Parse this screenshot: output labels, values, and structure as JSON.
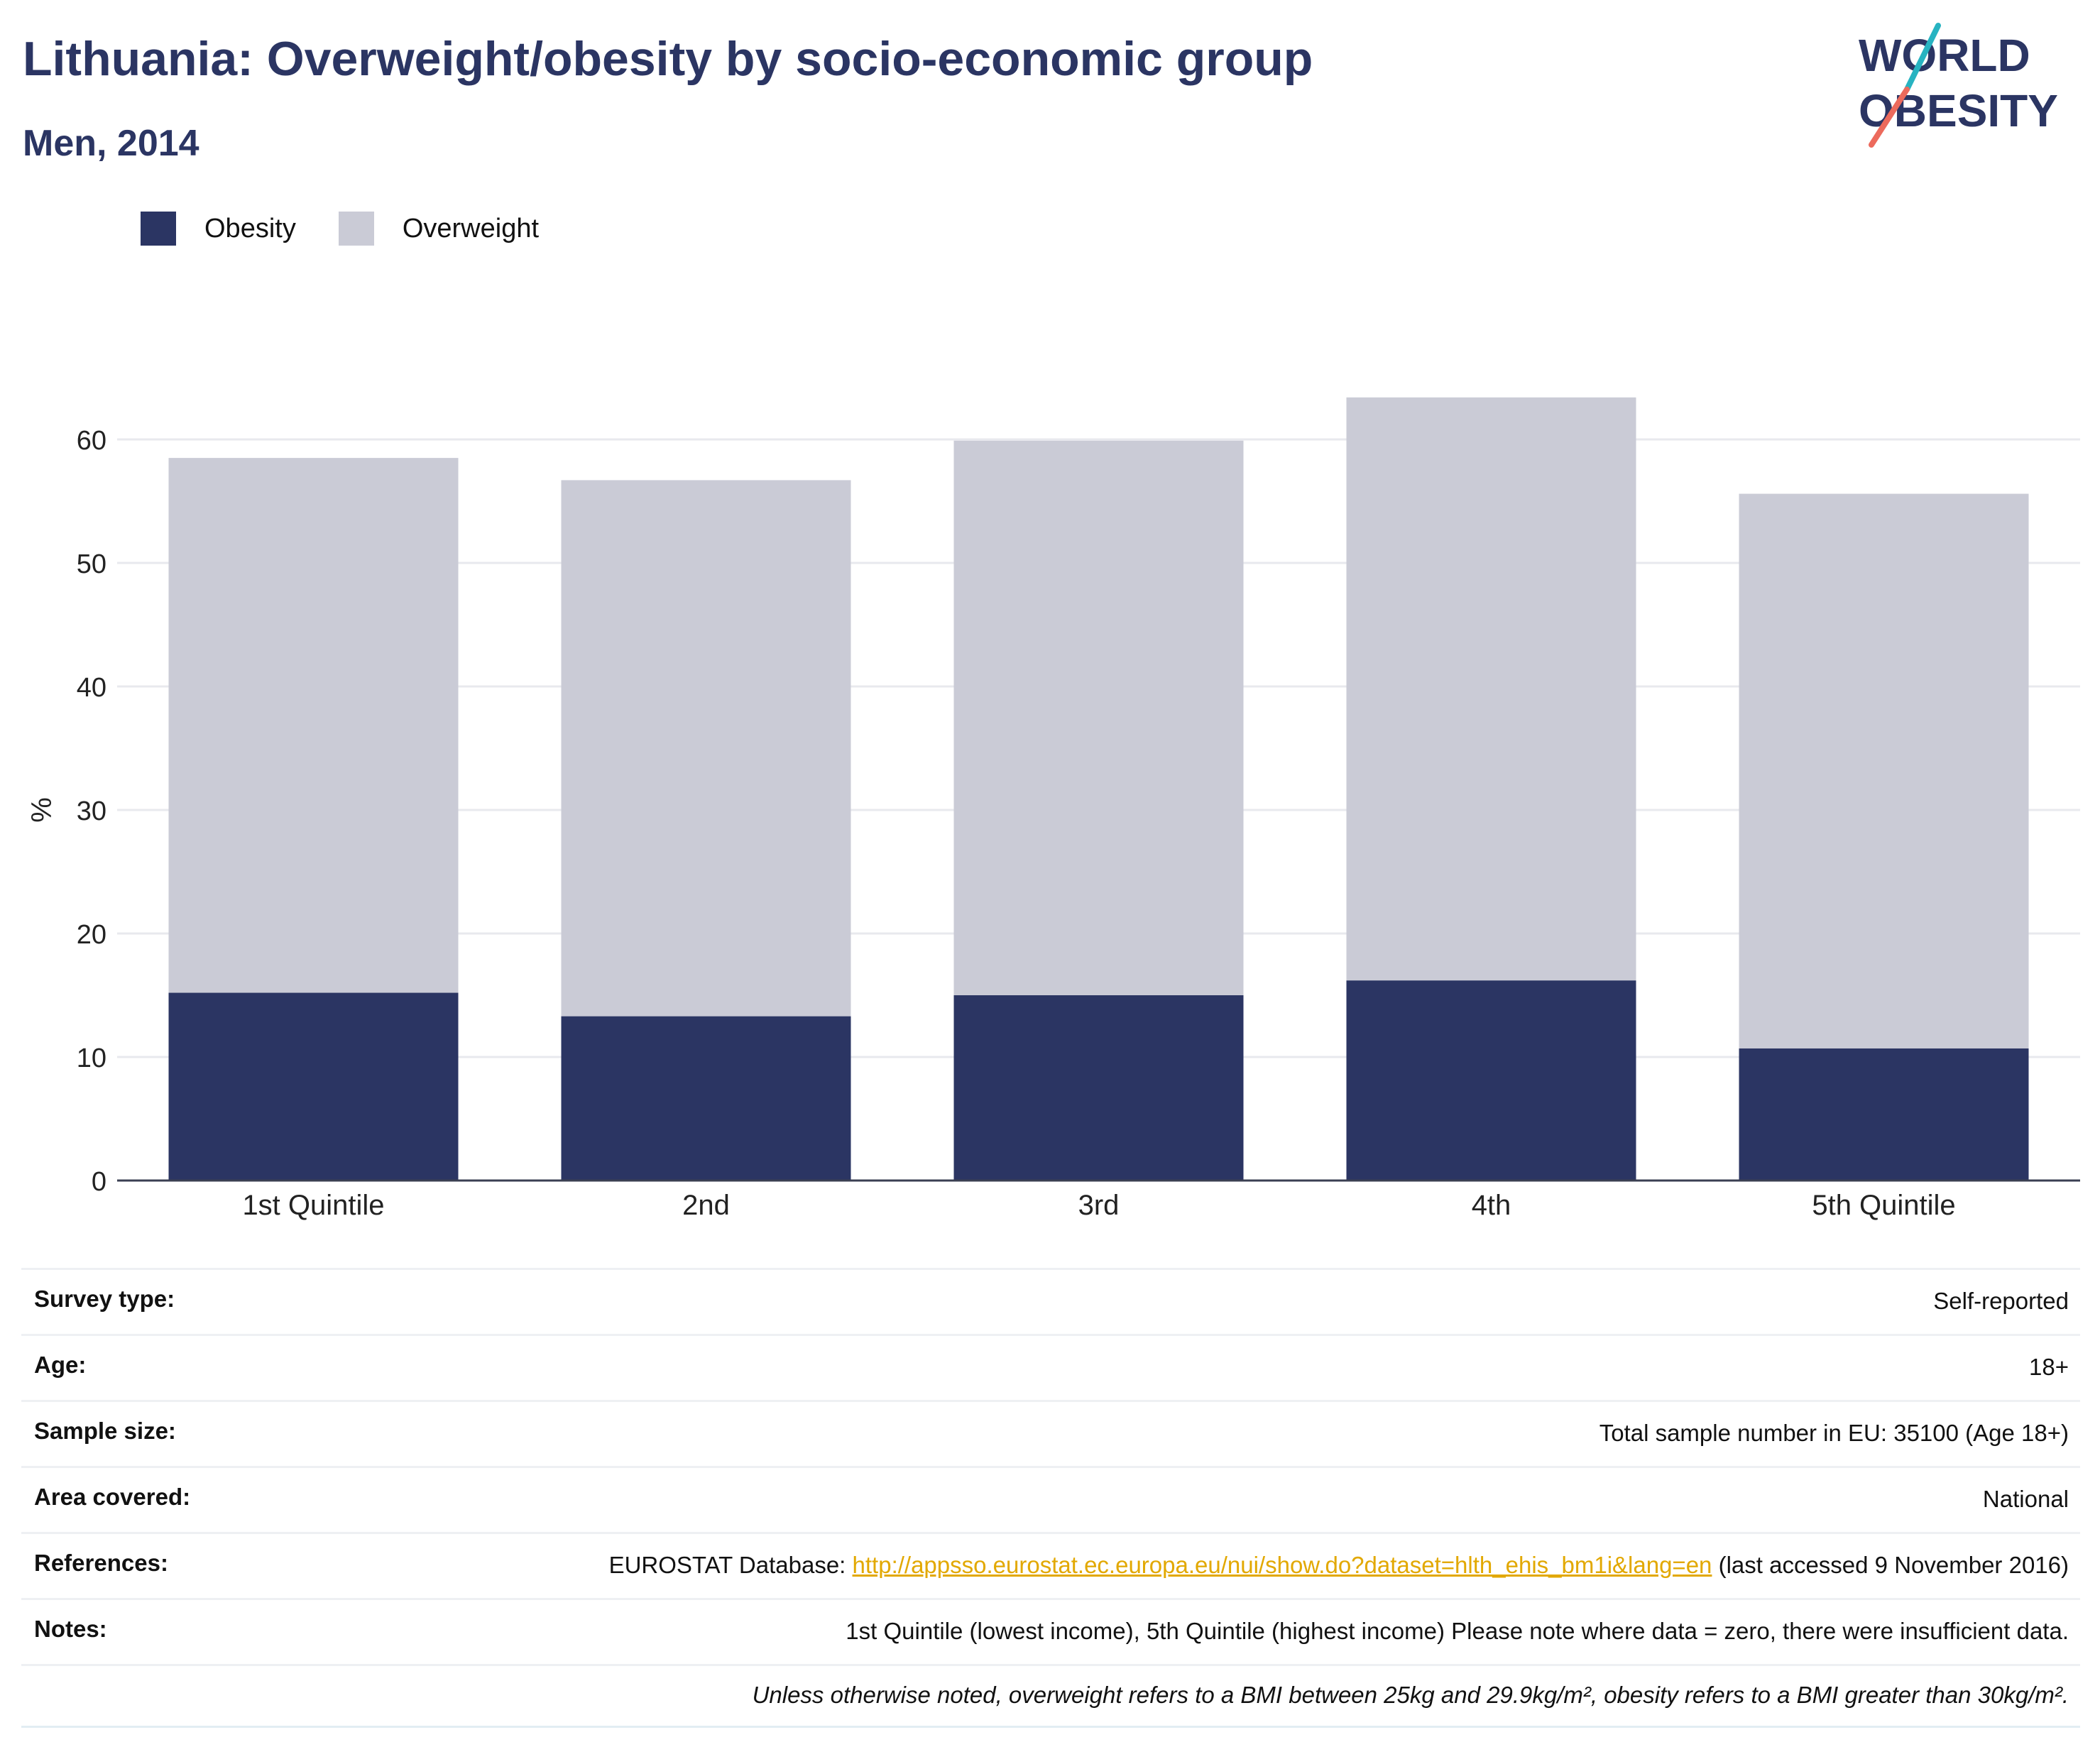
{
  "title": "Lithuania: Overweight/obesity by socio-economic group",
  "subtitle": "Men, 2014",
  "logo": {
    "line1": "WORLD",
    "line2": "OBESITY"
  },
  "colors": {
    "title": "#2b3563",
    "obesity": "#2b3563",
    "overweight": "#cacbd6",
    "link": "#e2a800"
  },
  "legend": [
    {
      "name": "Obesity",
      "color": "#2b3563"
    },
    {
      "name": "Overweight",
      "color": "#cacbd6"
    }
  ],
  "chart_data": {
    "type": "bar",
    "stacked": true,
    "categories": [
      "1st Quintile",
      "2nd",
      "3rd",
      "4th",
      "5th Quintile"
    ],
    "series": [
      {
        "name": "Obesity",
        "values": [
          15.2,
          13.3,
          15.0,
          16.2,
          10.7
        ]
      },
      {
        "name": "Overweight",
        "values": [
          43.3,
          43.4,
          44.9,
          47.2,
          44.9
        ]
      }
    ],
    "ylabel": "%",
    "xlabel": "",
    "ylim": [
      0,
      65
    ],
    "yticks": [
      0,
      10,
      20,
      30,
      40,
      50,
      60
    ],
    "grid": true,
    "legend_position": "top-left"
  },
  "meta": {
    "survey_type": {
      "label": "Survey type:",
      "value": "Self-reported"
    },
    "age": {
      "label": "Age:",
      "value": "18+"
    },
    "sample_size": {
      "label": "Sample size:",
      "value": "Total sample number in EU: 35100 (Age 18+)"
    },
    "area_covered": {
      "label": "Area covered:",
      "value": "National"
    },
    "references": {
      "label": "References:",
      "prefix": "EUROSTAT Database: ",
      "link": "http://appsso.eurostat.ec.europa.eu/nui/show.do?dataset=hlth_ehis_bm1i&lang=en",
      "suffix": " (last accessed 9 November 2016)"
    },
    "notes": {
      "label": "Notes:",
      "value": "1st Quintile (lowest income), 5th Quintile (highest income) Please note where data = zero, there were insufficient data."
    },
    "footnote": "Unless otherwise noted, overweight refers to a BMI between 25kg and 29.9kg/m², obesity refers to a BMI greater than 30kg/m²."
  }
}
